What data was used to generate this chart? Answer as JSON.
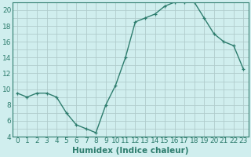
{
  "x": [
    0,
    1,
    2,
    3,
    4,
    5,
    6,
    7,
    8,
    9,
    10,
    11,
    12,
    13,
    14,
    15,
    16,
    17,
    18,
    19,
    20,
    21,
    22,
    23
  ],
  "y": [
    9.5,
    9.0,
    9.5,
    9.5,
    9.0,
    7.0,
    5.5,
    5.0,
    4.5,
    8.0,
    10.5,
    14.0,
    18.5,
    19.0,
    19.5,
    20.5,
    21.0,
    21.0,
    21.0,
    19.0,
    17.0,
    16.0,
    15.5,
    12.5
  ],
  "line_color": "#2e7d6e",
  "marker": "+",
  "marker_size": 3,
  "bg_color": "#d0eeee",
  "grid_color": "#b0cccc",
  "xlabel": "Humidex (Indice chaleur)",
  "ylabel": "",
  "xlim": [
    -0.5,
    23.5
  ],
  "ylim": [
    4,
    21
  ],
  "yticks": [
    4,
    6,
    8,
    10,
    12,
    14,
    16,
    18,
    20
  ],
  "xticks": [
    0,
    1,
    2,
    3,
    4,
    5,
    6,
    7,
    8,
    9,
    10,
    11,
    12,
    13,
    14,
    15,
    16,
    17,
    18,
    19,
    20,
    21,
    22,
    23
  ],
  "xtick_labels": [
    "0",
    "1",
    "2",
    "3",
    "4",
    "5",
    "6",
    "7",
    "8",
    "9",
    "10",
    "11",
    "12",
    "13",
    "14",
    "15",
    "16",
    "17",
    "18",
    "19",
    "20",
    "21",
    "22",
    "23"
  ],
  "tick_fontsize": 6.5,
  "label_fontsize": 7.5
}
